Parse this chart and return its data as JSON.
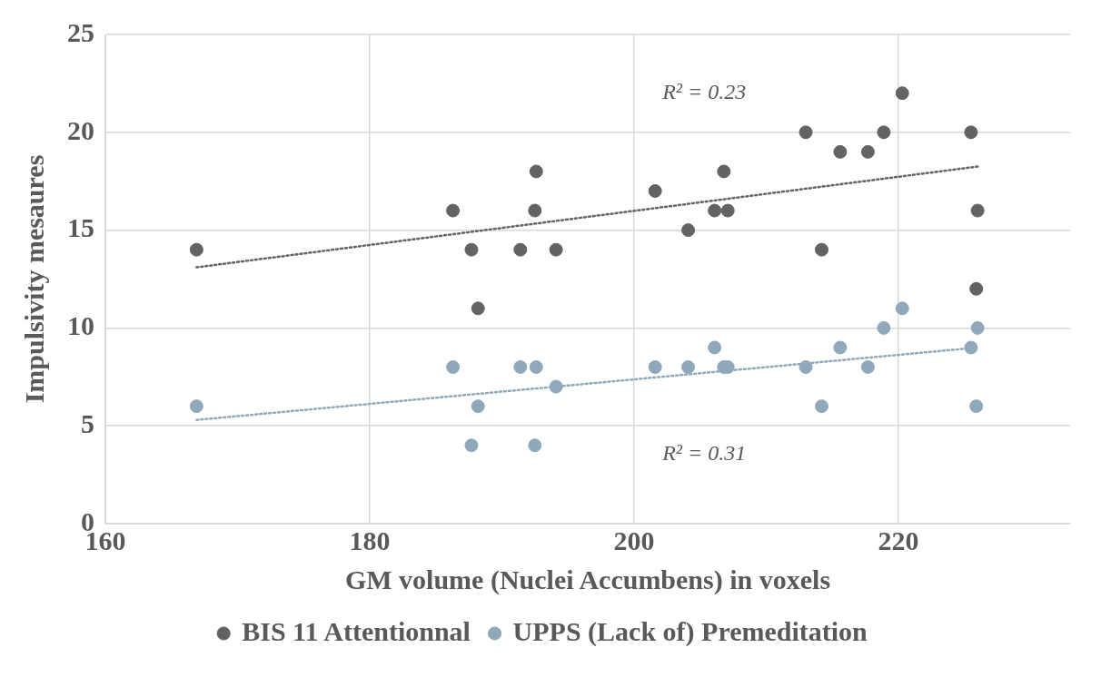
{
  "chart_data": {
    "type": "scatter",
    "xlabel": "GM volume (Nuclei Accumbens) in voxels",
    "ylabel": "Impulsivity mesaures",
    "xlim": [
      160,
      233
    ],
    "xticks": [
      160,
      180,
      200,
      220
    ],
    "ylim": [
      0,
      25
    ],
    "yticks": [
      0,
      5,
      10,
      15,
      20,
      25
    ],
    "grid": true,
    "legend": "bottom",
    "marker": "circle",
    "series": [
      {
        "name": "BIS 11 Attentionnal",
        "color": "#636363",
        "x": [
          166.9,
          186.3,
          187.7,
          188.2,
          191.4,
          192.5,
          192.6,
          194.1,
          201.6,
          204.1,
          206.1,
          206.8,
          207.1,
          213.0,
          214.2,
          215.6,
          217.7,
          218.9,
          220.3,
          225.5,
          226.0,
          225.9
        ],
        "values": [
          14,
          16,
          14,
          11,
          14,
          16,
          18,
          14,
          17,
          15,
          16,
          18,
          16,
          20,
          14,
          19,
          19,
          20,
          22,
          20,
          16,
          12
        ]
      },
      {
        "name": "UPPS (Lack of) Premeditation",
        "color": "#8fa9bb",
        "x": [
          166.9,
          186.3,
          187.7,
          188.2,
          191.4,
          192.5,
          192.6,
          194.1,
          201.6,
          204.1,
          206.1,
          206.8,
          207.1,
          213.0,
          214.2,
          215.6,
          217.7,
          218.9,
          220.3,
          225.5,
          226.0,
          225.9
        ],
        "values": [
          6,
          8,
          4,
          6,
          8,
          4,
          8,
          7,
          8,
          8,
          9,
          8,
          8,
          8,
          6,
          9,
          8,
          10,
          11,
          9,
          10,
          6
        ]
      },
      {
        "type": "line",
        "color": "#636363",
        "marker": "none",
        "line_style": "dotted",
        "x": [
          166.9,
          226.0
        ],
        "values": [
          13.1,
          18.25
        ]
      },
      {
        "type": "line",
        "color": "#8fa9bb",
        "marker": "none",
        "line_style": "dotted",
        "x": [
          166.9,
          226.0
        ],
        "values": [
          5.3,
          9.0
        ]
      }
    ],
    "annotations": [
      "R² = 0.23",
      "R² = 0.31"
    ]
  }
}
